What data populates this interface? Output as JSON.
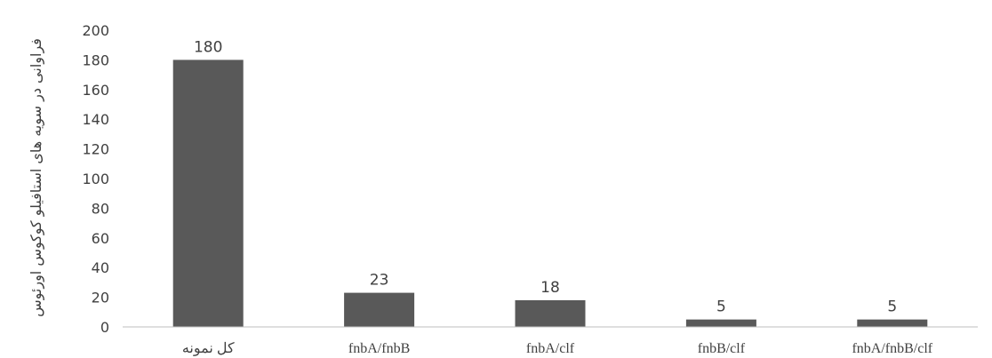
{
  "chart_data": {
    "type": "bar",
    "categories": [
      "کل نمونه",
      "fnbA/fnbB",
      "fnbA/clf",
      "fnbB/clf",
      "fnbA/fnbB/clf"
    ],
    "values": [
      180,
      23,
      18,
      5,
      5
    ],
    "data_labels": [
      "180",
      "23",
      "18",
      "5",
      "5"
    ],
    "title": "",
    "xlabel": "",
    "ylabel": "فراوانی در سویه های استافیلو کوکوس اورئوس",
    "ylim": [
      0,
      200
    ],
    "yticks": [
      0,
      20,
      40,
      60,
      80,
      100,
      120,
      140,
      160,
      180,
      200
    ],
    "grid": false,
    "legend": "none",
    "bar_color": "#595959",
    "axis_color": "#bfbfbf"
  }
}
